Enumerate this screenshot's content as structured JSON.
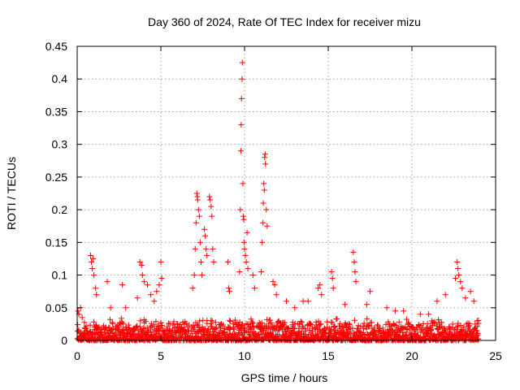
{
  "chart_data": {
    "type": "scatter",
    "title": "Day 360 of 2024, Rate Of TEC Index for receiver mizu",
    "xlabel": "GPS time / hours",
    "ylabel": "ROTI / TECUs",
    "xlim": [
      0,
      25
    ],
    "ylim": [
      0,
      0.45
    ],
    "x_ticks": [
      0,
      5,
      10,
      15,
      20,
      25
    ],
    "y_ticks": [
      0,
      0.05,
      0.1,
      0.15,
      0.2,
      0.25,
      0.3,
      0.35,
      0.4,
      0.45
    ],
    "x_tick_labels": [
      "0",
      "5",
      "10",
      "15",
      "20",
      "25"
    ],
    "y_tick_labels": [
      "0",
      "0.05",
      "0.1",
      "0.15",
      "0.2",
      "0.25",
      "0.3",
      "0.35",
      "0.4",
      "0.45"
    ],
    "grid": true,
    "marker": "+",
    "marker_color": "#ff0000",
    "series": [
      {
        "name": "ROTI",
        "points": [
          [
            0.05,
            0.045
          ],
          [
            0.1,
            0.04
          ],
          [
            0.2,
            0.05
          ],
          [
            0.3,
            0.035
          ],
          [
            0.8,
            0.13
          ],
          [
            0.85,
            0.12
          ],
          [
            0.9,
            0.11
          ],
          [
            0.95,
            0.125
          ],
          [
            1.0,
            0.1
          ],
          [
            1.1,
            0.08
          ],
          [
            1.15,
            0.07
          ],
          [
            1.8,
            0.09
          ],
          [
            2.0,
            0.05
          ],
          [
            2.7,
            0.085
          ],
          [
            2.9,
            0.05
          ],
          [
            3.6,
            0.065
          ],
          [
            3.75,
            0.12
          ],
          [
            3.85,
            0.115
          ],
          [
            3.9,
            0.1
          ],
          [
            4.0,
            0.09
          ],
          [
            4.2,
            0.085
          ],
          [
            4.4,
            0.07
          ],
          [
            4.6,
            0.06
          ],
          [
            4.75,
            0.075
          ],
          [
            4.9,
            0.085
          ],
          [
            5.0,
            0.12
          ],
          [
            5.05,
            0.095
          ],
          [
            6.9,
            0.08
          ],
          [
            7.0,
            0.1
          ],
          [
            7.05,
            0.14
          ],
          [
            7.1,
            0.18
          ],
          [
            7.15,
            0.225
          ],
          [
            7.18,
            0.22
          ],
          [
            7.2,
            0.215
          ],
          [
            7.25,
            0.2
          ],
          [
            7.3,
            0.19
          ],
          [
            7.35,
            0.15
          ],
          [
            7.4,
            0.12
          ],
          [
            7.45,
            0.1
          ],
          [
            7.6,
            0.17
          ],
          [
            7.65,
            0.16
          ],
          [
            7.7,
            0.14
          ],
          [
            7.75,
            0.13
          ],
          [
            7.9,
            0.22
          ],
          [
            7.95,
            0.215
          ],
          [
            8.0,
            0.205
          ],
          [
            8.05,
            0.19
          ],
          [
            8.1,
            0.14
          ],
          [
            8.15,
            0.12
          ],
          [
            9.0,
            0.12
          ],
          [
            9.05,
            0.08
          ],
          [
            9.1,
            0.075
          ],
          [
            9.7,
            0.105
          ],
          [
            9.75,
            0.2
          ],
          [
            9.78,
            0.29
          ],
          [
            9.8,
            0.33
          ],
          [
            9.82,
            0.37
          ],
          [
            9.85,
            0.4
          ],
          [
            9.87,
            0.425
          ],
          [
            9.9,
            0.24
          ],
          [
            9.92,
            0.19
          ],
          [
            9.95,
            0.185
          ],
          [
            9.97,
            0.15
          ],
          [
            10.0,
            0.14
          ],
          [
            10.05,
            0.13
          ],
          [
            10.1,
            0.12
          ],
          [
            10.15,
            0.165
          ],
          [
            10.2,
            0.11
          ],
          [
            10.5,
            0.1
          ],
          [
            10.6,
            0.08
          ],
          [
            11.0,
            0.105
          ],
          [
            11.05,
            0.15
          ],
          [
            11.1,
            0.18
          ],
          [
            11.12,
            0.21
          ],
          [
            11.15,
            0.24
          ],
          [
            11.18,
            0.23
          ],
          [
            11.2,
            0.28
          ],
          [
            11.23,
            0.285
          ],
          [
            11.25,
            0.27
          ],
          [
            11.3,
            0.2
          ],
          [
            11.35,
            0.175
          ],
          [
            11.7,
            0.09
          ],
          [
            11.8,
            0.085
          ],
          [
            11.9,
            0.07
          ],
          [
            12.5,
            0.06
          ],
          [
            13.0,
            0.05
          ],
          [
            13.5,
            0.06
          ],
          [
            13.8,
            0.06
          ],
          [
            14.4,
            0.08
          ],
          [
            14.5,
            0.085
          ],
          [
            14.6,
            0.07
          ],
          [
            15.2,
            0.105
          ],
          [
            15.25,
            0.095
          ],
          [
            15.3,
            0.08
          ],
          [
            16.0,
            0.055
          ],
          [
            16.5,
            0.135
          ],
          [
            16.55,
            0.12
          ],
          [
            16.6,
            0.105
          ],
          [
            16.65,
            0.09
          ],
          [
            17.3,
            0.055
          ],
          [
            17.5,
            0.075
          ],
          [
            18.5,
            0.05
          ],
          [
            19.0,
            0.045
          ],
          [
            19.5,
            0.045
          ],
          [
            20.5,
            0.04
          ],
          [
            21.0,
            0.04
          ],
          [
            21.5,
            0.06
          ],
          [
            22.0,
            0.07
          ],
          [
            22.6,
            0.095
          ],
          [
            22.7,
            0.12
          ],
          [
            22.75,
            0.11
          ],
          [
            22.8,
            0.1
          ],
          [
            22.9,
            0.09
          ],
          [
            23.0,
            0.08
          ],
          [
            23.2,
            0.065
          ],
          [
            23.5,
            0.075
          ],
          [
            23.7,
            0.06
          ],
          [
            23.9,
            0.03
          ]
        ],
        "baseline_band": {
          "x_range": [
            0,
            24
          ],
          "value_range": [
            0,
            0.035
          ]
        }
      }
    ]
  }
}
